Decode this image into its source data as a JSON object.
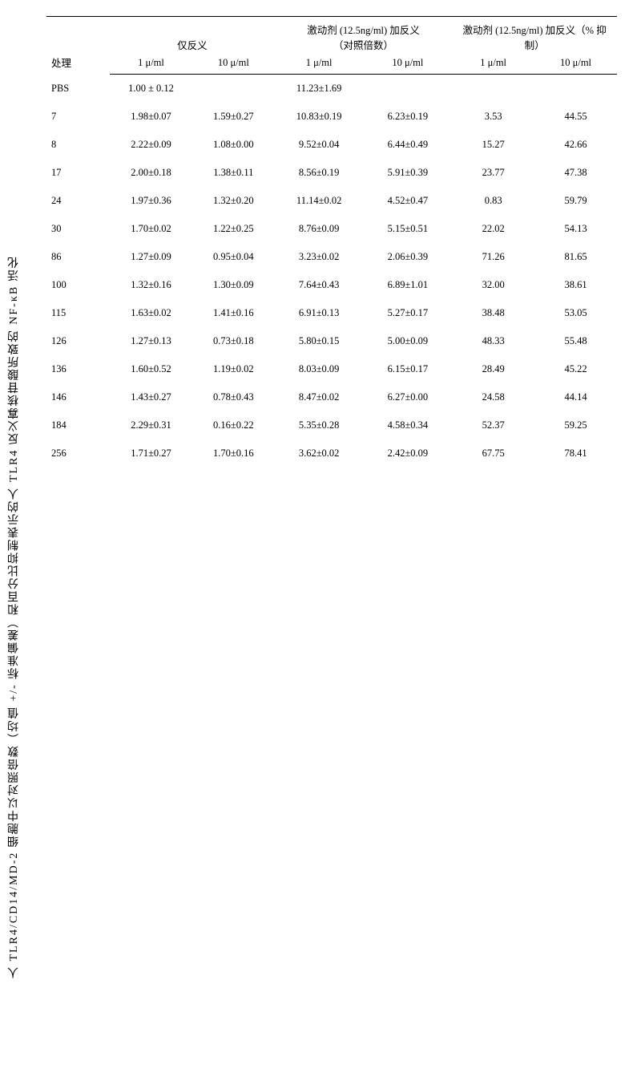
{
  "caption": "人 TLR4/CD14/MD-2 细胞中以对照倍数（均值 +/- 标准偏差）和百分比抑制表示的人 TLR4 反义寡核苷酸所致的 NF-κB 活化",
  "header": {
    "treatment": "处理",
    "antisense_only": "仅反义",
    "agonist_antisense": "激动剂 (12.5ng/ml) 加反义\n（对照倍数）",
    "agonist_percent": "激动剂 (12.5ng/ml) 加反义（% 抑制）",
    "c1": "1 μ/ml",
    "c10": "10 μ/ml"
  },
  "rows": [
    {
      "t": "PBS",
      "a1": "1.00 ± 0.12",
      "a10": "",
      "b1": "11.23±1.69",
      "b10": "",
      "p1": "",
      "p10": ""
    },
    {
      "t": "7",
      "a1": "1.98±0.07",
      "a10": "1.59±0.27",
      "b1": "10.83±0.19",
      "b10": "6.23±0.19",
      "p1": "3.53",
      "p10": "44.55"
    },
    {
      "t": "8",
      "a1": "2.22±0.09",
      "a10": "1.08±0.00",
      "b1": "9.52±0.04",
      "b10": "6.44±0.49",
      "p1": "15.27",
      "p10": "42.66"
    },
    {
      "t": "17",
      "a1": "2.00±0.18",
      "a10": "1.38±0.11",
      "b1": "8.56±0.19",
      "b10": "5.91±0.39",
      "p1": "23.77",
      "p10": "47.38"
    },
    {
      "t": "24",
      "a1": "1.97±0.36",
      "a10": "1.32±0.20",
      "b1": "11.14±0.02",
      "b10": "4.52±0.47",
      "p1": "0.83",
      "p10": "59.79"
    },
    {
      "t": "30",
      "a1": "1.70±0.02",
      "a10": "1.22±0.25",
      "b1": "8.76±0.09",
      "b10": "5.15±0.51",
      "p1": "22.02",
      "p10": "54.13"
    },
    {
      "t": "86",
      "a1": "1.27±0.09",
      "a10": "0.95±0.04",
      "b1": "3.23±0.02",
      "b10": "2.06±0.39",
      "p1": "71.26",
      "p10": "81.65"
    },
    {
      "t": "100",
      "a1": "1.32±0.16",
      "a10": "1.30±0.09",
      "b1": "7.64±0.43",
      "b10": "6.89±1.01",
      "p1": "32.00",
      "p10": "38.61"
    },
    {
      "t": "115",
      "a1": "1.63±0.02",
      "a10": "1.41±0.16",
      "b1": "6.91±0.13",
      "b10": "5.27±0.17",
      "p1": "38.48",
      "p10": "53.05"
    },
    {
      "t": "126",
      "a1": "1.27±0.13",
      "a10": "0.73±0.18",
      "b1": "5.80±0.15",
      "b10": "5.00±0.09",
      "p1": "48.33",
      "p10": "55.48"
    },
    {
      "t": "136",
      "a1": "1.60±0.52",
      "a10": "1.19±0.02",
      "b1": "8.03±0.09",
      "b10": "6.15±0.17",
      "p1": "28.49",
      "p10": "45.22"
    },
    {
      "t": "146",
      "a1": "1.43±0.27",
      "a10": "0.78±0.43",
      "b1": "8.47±0.02",
      "b10": "6.27±0.00",
      "p1": "24.58",
      "p10": "44.14"
    },
    {
      "t": "184",
      "a1": "2.29±0.31",
      "a10": "0.16±0.22",
      "b1": "5.35±0.28",
      "b10": "4.58±0.34",
      "p1": "52.37",
      "p10": "59.25"
    },
    {
      "t": "256",
      "a1": "1.71±0.27",
      "a10": "1.70±0.16",
      "b1": "3.62±0.02",
      "b10": "2.42±0.09",
      "p1": "67.75",
      "p10": "78.41"
    }
  ],
  "style": {
    "font_family": "SimSun, Times New Roman, serif",
    "font_size_pt": 10,
    "text_color": "#000000",
    "background_color": "#ffffff",
    "rule_color": "#000000",
    "col_widths_pct": [
      10,
      13,
      13,
      14,
      14,
      13,
      13
    ]
  }
}
